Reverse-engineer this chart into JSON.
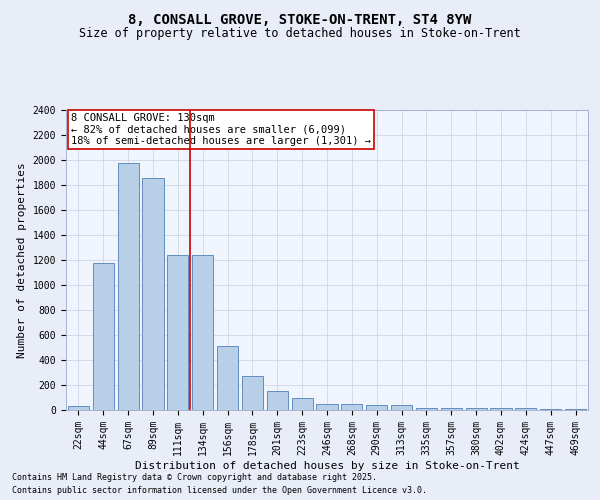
{
  "title": "8, CONSALL GROVE, STOKE-ON-TRENT, ST4 8YW",
  "subtitle": "Size of property relative to detached houses in Stoke-on-Trent",
  "xlabel": "Distribution of detached houses by size in Stoke-on-Trent",
  "ylabel": "Number of detached properties",
  "categories": [
    "22sqm",
    "44sqm",
    "67sqm",
    "89sqm",
    "111sqm",
    "134sqm",
    "156sqm",
    "178sqm",
    "201sqm",
    "223sqm",
    "246sqm",
    "268sqm",
    "290sqm",
    "313sqm",
    "335sqm",
    "357sqm",
    "380sqm",
    "402sqm",
    "424sqm",
    "447sqm",
    "469sqm"
  ],
  "values": [
    30,
    1175,
    1980,
    1855,
    1240,
    1240,
    510,
    270,
    155,
    95,
    50,
    50,
    40,
    40,
    20,
    20,
    15,
    15,
    15,
    10,
    10
  ],
  "bar_color": "#b8cfe8",
  "bar_edge_color": "#5080b8",
  "vline_x": 4.5,
  "vline_color": "#cc0000",
  "annotation_text": "8 CONSALL GROVE: 130sqm\n← 82% of detached houses are smaller (6,099)\n18% of semi-detached houses are larger (1,301) →",
  "annotation_box_color": "white",
  "annotation_box_edge": "#cc0000",
  "ylim": [
    0,
    2400
  ],
  "yticks": [
    0,
    200,
    400,
    600,
    800,
    1000,
    1200,
    1400,
    1600,
    1800,
    2000,
    2200,
    2400
  ],
  "footnote1": "Contains HM Land Registry data © Crown copyright and database right 2025.",
  "footnote2": "Contains public sector information licensed under the Open Government Licence v3.0.",
  "bg_color": "#e8edf8",
  "plot_bg_color": "#f0f4fc",
  "grid_color": "#c8cfe0",
  "title_fontsize": 10,
  "subtitle_fontsize": 8.5,
  "tick_fontsize": 7,
  "label_fontsize": 8,
  "annot_fontsize": 7.5,
  "footnote_fontsize": 6
}
